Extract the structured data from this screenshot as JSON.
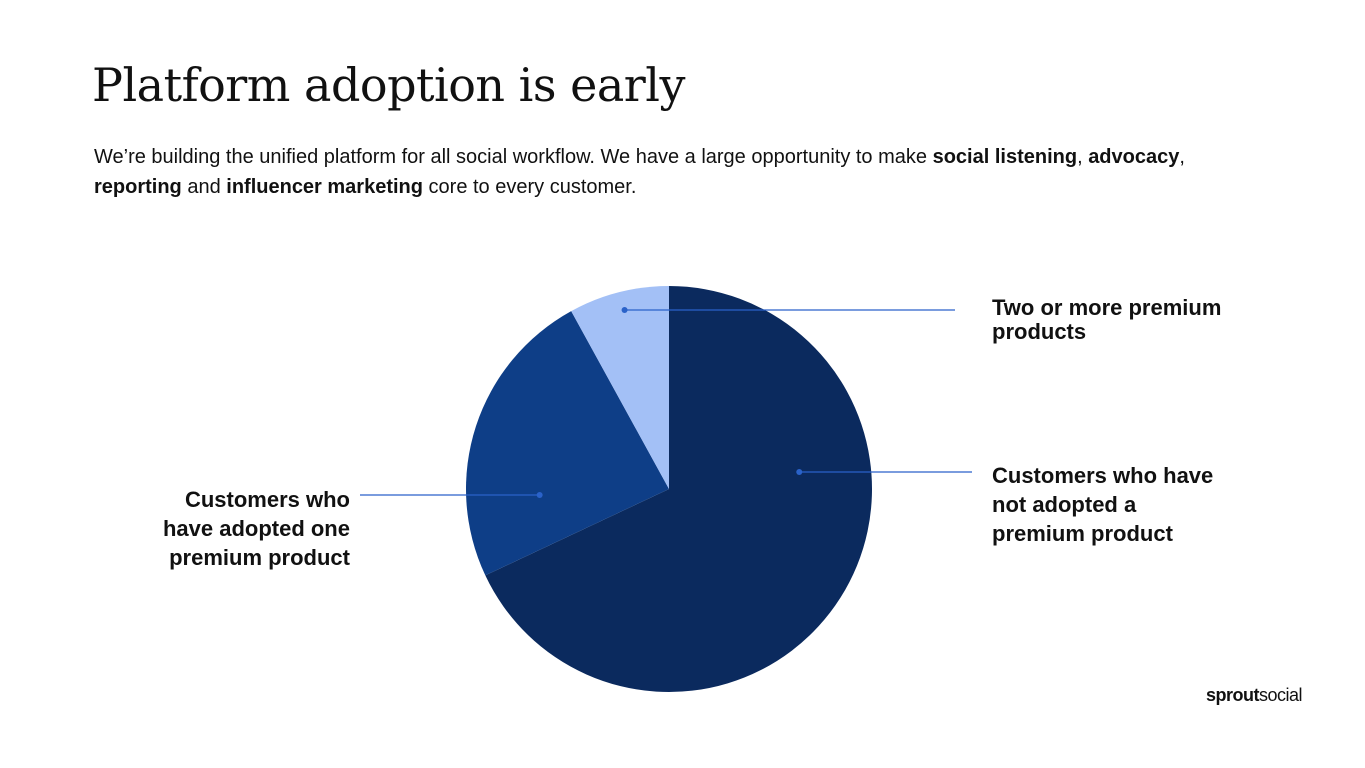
{
  "title": "Platform adoption is early",
  "subtitle_parts": [
    {
      "text": "We’re building the unified platform for all social workflow. We have a large opportunity to make ",
      "bold": false
    },
    {
      "text": "social listening",
      "bold": true
    },
    {
      "text": ", ",
      "bold": false
    },
    {
      "text": "advocacy",
      "bold": true
    },
    {
      "text": ", ",
      "bold": false
    },
    {
      "text": "reporting",
      "bold": true
    },
    {
      "text": " and ",
      "bold": false
    },
    {
      "text": "influencer marketing",
      "bold": true
    },
    {
      "text": " core to every customer.",
      "bold": false
    }
  ],
  "chart_data": {
    "type": "pie",
    "categories": [
      "Customers who have not adopted a premium product",
      "Customers who have adopted one premium product",
      "Two or more premium products"
    ],
    "values": [
      68,
      24,
      8
    ],
    "colors": [
      "#0b2a5e",
      "#0e3e87",
      "#a3c0f6"
    ]
  },
  "logo": [
    {
      "text": "sprout",
      "bold": true
    },
    {
      "text": "social",
      "bold": false
    }
  ]
}
